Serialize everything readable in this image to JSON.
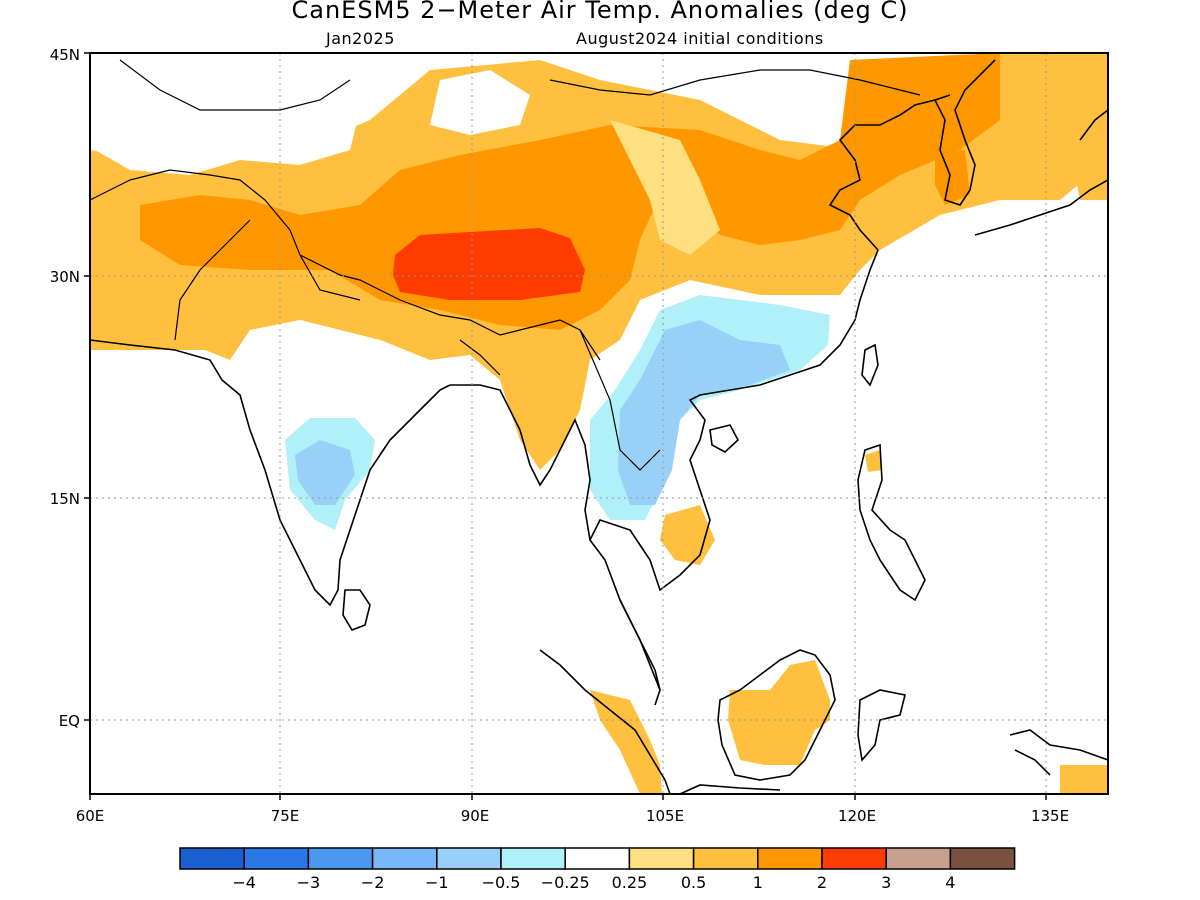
{
  "title": "CanESM5 2−Meter Air Temp. Anomalies (deg C)",
  "subtitle_left": "Jan2025",
  "subtitle_right": "August2024 initial conditions",
  "axes": {
    "lon_labels": [
      "60E",
      "75E",
      "90E",
      "105E",
      "120E",
      "135E"
    ],
    "lat_labels": [
      "45N",
      "30N",
      "15N",
      "EQ"
    ],
    "lon_range": [
      60,
      140
    ],
    "lat_range": [
      -5,
      45
    ],
    "grid": "dotted"
  },
  "colorbar": {
    "colors": [
      "#1a5fd0",
      "#2a78e8",
      "#4a98f0",
      "#78b8f8",
      "#98d0f8",
      "#b0f0f8",
      "#ffffff",
      "#ffe080",
      "#ffc040",
      "#ff9800",
      "#ff3c00",
      "#c8a090",
      "#7a5040"
    ],
    "labels": [
      "−4",
      "−3",
      "−2",
      "−1",
      "−0.5",
      "−0.25",
      "0.25",
      "0.5",
      "1",
      "2",
      "3",
      "4"
    ]
  },
  "map_colors": {
    "yellow": "#ffe080",
    "light_orange": "#ffc040",
    "orange": "#ff9800",
    "red": "#ff3c00",
    "light_blue": "#b0f0f8",
    "blue": "#98d0f8",
    "coast": "#000000"
  }
}
